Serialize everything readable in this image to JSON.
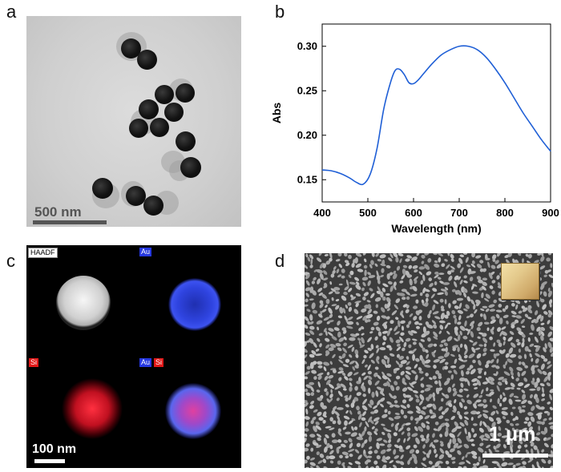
{
  "panels": {
    "a": {
      "letter": "a",
      "scale_label": "500 nm"
    },
    "b": {
      "letter": "b"
    },
    "c": {
      "letter": "c",
      "scale_label": "100 nm",
      "tags": {
        "haadf": "HAADF",
        "au": "Au",
        "si": "Si",
        "au2": "Au",
        "si2": "Si"
      }
    },
    "d": {
      "letter": "d",
      "scale_label": "1 μm"
    }
  },
  "chart_data": {
    "type": "line",
    "title": "",
    "xlabel": "Wavelength (nm)",
    "ylabel": "Abs",
    "xlim": [
      400,
      900
    ],
    "ylim": [
      0.125,
      0.325
    ],
    "xticks": [
      "400",
      "500",
      "600",
      "700",
      "800",
      "900"
    ],
    "yticks": [
      "0.15",
      "0.20",
      "0.25",
      "0.30"
    ],
    "grid": false,
    "series": [
      {
        "color": "#1f5fd6",
        "x": [
          400,
          420,
          440,
          460,
          475,
          490,
          505,
          520,
          535,
          550,
          560,
          570,
          580,
          590,
          600,
          610,
          620,
          640,
          660,
          680,
          700,
          720,
          740,
          760,
          780,
          800,
          820,
          840,
          860,
          880,
          900
        ],
        "y": [
          0.161,
          0.16,
          0.157,
          0.152,
          0.147,
          0.145,
          0.156,
          0.185,
          0.23,
          0.26,
          0.273,
          0.274,
          0.268,
          0.259,
          0.258,
          0.262,
          0.268,
          0.28,
          0.29,
          0.296,
          0.3,
          0.3,
          0.296,
          0.287,
          0.274,
          0.259,
          0.242,
          0.225,
          0.21,
          0.195,
          0.182
        ]
      }
    ]
  }
}
